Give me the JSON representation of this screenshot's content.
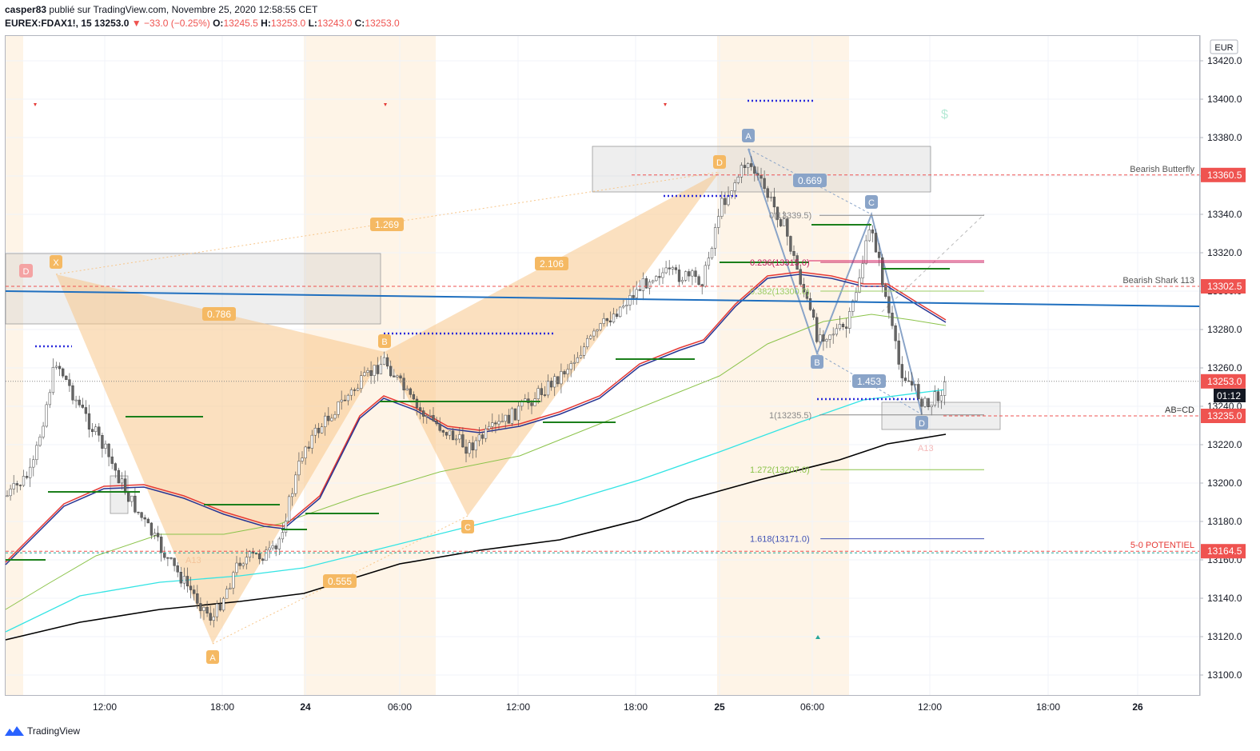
{
  "header": {
    "author": "casper83",
    "published": "publié sur TradingView.com, Novembre 25, 2020 12:58:55 CET",
    "symbol": "EUREX:FDAX1!, 15",
    "last": "13253.0",
    "change": "−33.0 (−0.25%)",
    "o_label": "O:",
    "o": "13245.5",
    "h_label": "H:",
    "h": "13253.0",
    "l_label": "L:",
    "l": "13243.0",
    "c_label": "C:",
    "c": "13253.0"
  },
  "footer": {
    "brand": "TradingView"
  },
  "currency": "EUR",
  "countdown": "01:12",
  "colors": {
    "up": "#26a69a",
    "down": "#ef5350",
    "pattern_fill": "#f7c68a",
    "harmonic_blue": "#8aa4c8",
    "trend": "#1f6fbf",
    "ema_red": "#e53935",
    "ema_blue": "#283593",
    "sma_green": "#8bc34a",
    "sma_cyan": "#33e4e4",
    "sma_black": "#000000"
  },
  "chart_data": {
    "type": "candlestick",
    "x_ticks": [
      "12:00",
      "18:00",
      "24",
      "06:00",
      "12:00",
      "18:00",
      "25",
      "06:00",
      "12:00",
      "18:00",
      "26"
    ],
    "y_ticks": [
      "13420.0",
      "13400.0",
      "13380.0",
      "13360.0",
      "13340.0",
      "13320.0",
      "13300.0",
      "13280.0",
      "13260.0",
      "13240.0",
      "13220.0",
      "13200.0",
      "13180.0",
      "13160.0",
      "13140.0",
      "13120.0",
      "13100.0"
    ],
    "ylim": [
      13088,
      13432
    ],
    "price_tags": [
      {
        "label": "13360.5",
        "price": 13360.5,
        "color": "#ef5350"
      },
      {
        "label": "13302.5",
        "price": 13302.5,
        "color": "#ef5350"
      },
      {
        "label": "13253.0",
        "price": 13253.0,
        "color": "#ef5350"
      },
      {
        "label": "13235.0",
        "price": 13235.0,
        "color": "#ef5350"
      },
      {
        "label": "13164.5",
        "price": 13164.5,
        "color": "#ef5350"
      }
    ],
    "level_texts": [
      {
        "text": "Bearish Butterfly",
        "price": 13360.5,
        "color": "#555555"
      },
      {
        "text": "Bearish Shark 113",
        "price": 13302.5,
        "color": "#555555"
      },
      {
        "text": "AB=CD",
        "price": 13235.0,
        "color": "#333333"
      },
      {
        "text": "5-0 POTENTIEL",
        "price": 13164.5,
        "color": "#e53935"
      }
    ],
    "fib_levels": [
      {
        "label": "0(13339.5)",
        "price": 13339.5,
        "color": "#888888"
      },
      {
        "label": "0.236(13315.0)",
        "price": 13315.0,
        "color": "#c2185b"
      },
      {
        "label": "0.382(13300.0)",
        "price": 13300.0,
        "color": "#9ccc65"
      },
      {
        "label": "1(13235.5)",
        "price": 13235.5,
        "color": "#888888"
      },
      {
        "label": "1.272(13207.0)",
        "price": 13207.0,
        "color": "#8bc34a"
      },
      {
        "label": "1.618(13171.0)",
        "price": 13171.0,
        "color": "#3f51b5"
      }
    ],
    "pattern_points": [
      "X",
      "A",
      "B",
      "C",
      "D"
    ],
    "pattern_ratios": [
      "1.269",
      "0.786",
      "2.106",
      "0.555"
    ],
    "harmonic_points": [
      "A",
      "B",
      "C",
      "D"
    ],
    "harmonic_ratios": [
      "0.669",
      "1.453"
    ],
    "small_labels": [
      "A13",
      "A13",
      "D"
    ],
    "dollar_mark": "$"
  }
}
